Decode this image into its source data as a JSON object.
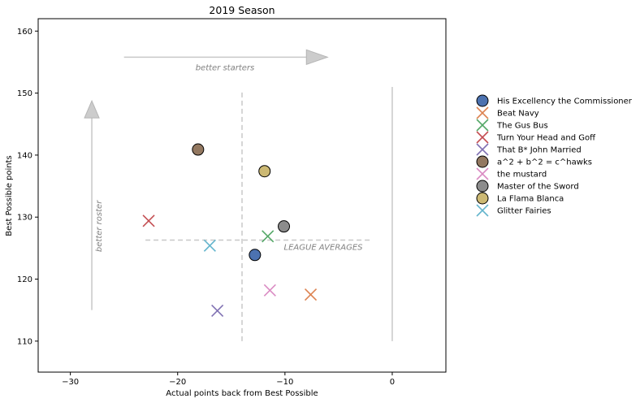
{
  "chart_data": {
    "type": "scatter",
    "title": "2019 Season",
    "xlabel": "Actual points back from Best Possible",
    "ylabel": "Best Possible points",
    "xlim": [
      -33,
      5
    ],
    "ylim": [
      105,
      162
    ],
    "xticks": [
      -30,
      -20,
      -10,
      0
    ],
    "yticks": [
      110,
      120,
      130,
      140,
      150,
      160
    ],
    "grid": false,
    "legend_position": "right",
    "series": [
      {
        "name": "His Excellency the Commissioner",
        "marker": "circle",
        "color": "#4c72b0",
        "x": -12.8,
        "y": 123.9
      },
      {
        "name": "Beat Navy",
        "marker": "x",
        "color": "#dd8452",
        "x": -7.6,
        "y": 117.5
      },
      {
        "name": "The Gus Bus",
        "marker": "x",
        "color": "#55a868",
        "x": -11.6,
        "y": 126.9
      },
      {
        "name": "Turn Your Head and Goff",
        "marker": "x",
        "color": "#c44e52",
        "x": -22.7,
        "y": 129.4
      },
      {
        "name": "That B* John Married",
        "marker": "x",
        "color": "#8172b3",
        "x": -16.3,
        "y": 114.9
      },
      {
        "name": "a^2 + b^2 = c^hawks",
        "marker": "circle",
        "color": "#937860",
        "x": -18.1,
        "y": 140.9
      },
      {
        "name": "the mustard",
        "marker": "x",
        "color": "#da8bc3",
        "x": -11.4,
        "y": 118.2
      },
      {
        "name": "Master of the Sword",
        "marker": "circle",
        "color": "#8c8c8c",
        "x": -10.1,
        "y": 128.5
      },
      {
        "name": "La Flama Blanca",
        "marker": "circle",
        "color": "#ccb974",
        "x": -11.9,
        "y": 137.4
      },
      {
        "name": "Glitter Fairies",
        "marker": "x",
        "color": "#64b5cd",
        "x": -17.0,
        "y": 125.4
      }
    ],
    "reference_lines": {
      "league_avg_x": -14,
      "league_avg_y": 126.3,
      "vertical_y_range": [
        110,
        150.5
      ],
      "horizontal_x_range": [
        -23,
        -2
      ],
      "zero_line_y_range": [
        110,
        151
      ]
    },
    "annotations": {
      "league_averages": "LEAGUE AVERAGES",
      "better_starters": "better starters",
      "better_roster": "better roster"
    },
    "arrows": {
      "starters": {
        "x_from": -25,
        "x_to": -8,
        "y": 155.8
      },
      "roster": {
        "x": -28,
        "y_from": 115,
        "y_to": 146
      }
    }
  }
}
